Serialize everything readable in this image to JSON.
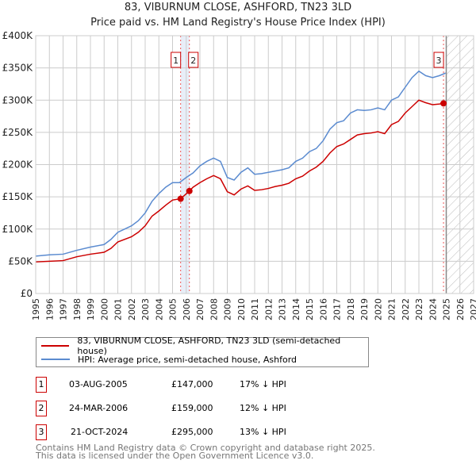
{
  "chart_data": {
    "type": "line",
    "title": "83, VIBURNUM CLOSE, ASHFORD, TN23 3LD",
    "subtitle": "Price paid vs. HM Land Registry's House Price Index (HPI)",
    "xlim": [
      1995,
      2027
    ],
    "ylim": [
      0,
      400000
    ],
    "yticks": [
      0,
      50000,
      100000,
      150000,
      200000,
      250000,
      300000,
      350000,
      400000
    ],
    "ytick_labels": [
      "£0",
      "£50K",
      "£100K",
      "£150K",
      "£200K",
      "£250K",
      "£300K",
      "£350K",
      "£400K"
    ],
    "xticks": [
      "1995",
      "1996",
      "1997",
      "1998",
      "1999",
      "2000",
      "2001",
      "2002",
      "2003",
      "2004",
      "2005",
      "2006",
      "2007",
      "2008",
      "2009",
      "2010",
      "2011",
      "2012",
      "2013",
      "2014",
      "2015",
      "2016",
      "2017",
      "2018",
      "2019",
      "2020",
      "2021",
      "2022",
      "2023",
      "2024",
      "2025",
      "2026",
      "2027"
    ],
    "grid": true,
    "forecast_start": 2025.0,
    "series": [
      {
        "name": "83, VIBURNUM CLOSE, ASHFORD, TN23 3LD (semi-detached house)",
        "color": "#cc0000",
        "x": [
          1995,
          1996,
          1997,
          1998,
          1999,
          2000,
          2000.5,
          2001,
          2002,
          2002.5,
          2003,
          2003.5,
          2004,
          2004.5,
          2005,
          2005.59,
          2006.23,
          2006.5,
          2007,
          2007.5,
          2008,
          2008.5,
          2009,
          2009.5,
          2010,
          2010.5,
          2011,
          2011.5,
          2012,
          2012.5,
          2013,
          2013.5,
          2014,
          2014.5,
          2015,
          2015.5,
          2016,
          2016.5,
          2017,
          2017.5,
          2018,
          2018.5,
          2019,
          2019.5,
          2020,
          2020.5,
          2021,
          2021.5,
          2022,
          2022.5,
          2023,
          2023.5,
          2024,
          2024.5,
          2024.8,
          2024.95
        ],
        "y": [
          49000,
          50000,
          51000,
          57000,
          61000,
          64000,
          70000,
          80000,
          88000,
          95000,
          105000,
          120000,
          128000,
          137000,
          145000,
          147000,
          159000,
          165000,
          172000,
          178000,
          183000,
          178000,
          158000,
          153000,
          162000,
          167000,
          160000,
          161000,
          163000,
          166000,
          168000,
          171000,
          178000,
          182000,
          190000,
          196000,
          205000,
          218000,
          228000,
          232000,
          239000,
          246000,
          248000,
          249000,
          251000,
          248000,
          262000,
          267000,
          280000,
          290000,
          300000,
          296000,
          293000,
          294000,
          295000,
          296000
        ]
      },
      {
        "name": "HPI: Average price, semi-detached house, Ashford",
        "color": "#5b8bd0",
        "x": [
          1995,
          1996,
          1997,
          1998,
          1999,
          2000,
          2000.5,
          2001,
          2002,
          2002.5,
          2003,
          2003.5,
          2004,
          2004.5,
          2005,
          2005.5,
          2006,
          2006.5,
          2007,
          2007.5,
          2008,
          2008.5,
          2009,
          2009.5,
          2010,
          2010.5,
          2011,
          2011.5,
          2012,
          2012.5,
          2013,
          2013.5,
          2014,
          2014.5,
          2015,
          2015.5,
          2016,
          2016.5,
          2017,
          2017.5,
          2018,
          2018.5,
          2019,
          2019.5,
          2020,
          2020.5,
          2021,
          2021.5,
          2022,
          2022.5,
          2023,
          2023.5,
          2024,
          2024.5,
          2024.95
        ],
        "y": [
          58000,
          60000,
          61000,
          67000,
          72000,
          76000,
          84000,
          95000,
          105000,
          113000,
          125000,
          143000,
          155000,
          165000,
          172000,
          172000,
          180000,
          187000,
          198000,
          205000,
          210000,
          205000,
          180000,
          176000,
          188000,
          195000,
          185000,
          186000,
          188000,
          190000,
          192000,
          195000,
          205000,
          210000,
          220000,
          225000,
          237000,
          255000,
          265000,
          268000,
          280000,
          285000,
          284000,
          285000,
          288000,
          285000,
          300000,
          305000,
          320000,
          335000,
          345000,
          338000,
          335000,
          338000,
          342000
        ]
      }
    ],
    "sales": [
      {
        "label": "1",
        "x": 2005.59,
        "price": 147000,
        "date": "03-AUG-2005",
        "price_text": "£147,000",
        "hpi_text": "17% ↓ HPI"
      },
      {
        "label": "2",
        "x": 2006.23,
        "price": 159000,
        "date": "24-MAR-2006",
        "price_text": "£159,000",
        "hpi_text": "12% ↓ HPI"
      },
      {
        "label": "3",
        "x": 2024.8,
        "price": 295000,
        "date": "21-OCT-2024",
        "price_text": "£295,000",
        "hpi_text": "13% ↓ HPI"
      }
    ],
    "legend": {
      "placement": "bottom",
      "entries": [
        "83, VIBURNUM CLOSE, ASHFORD, TN23 3LD (semi-detached house)",
        "HPI: Average price, semi-detached house, Ashford"
      ]
    }
  },
  "footer": {
    "line1": "Contains HM Land Registry data © Crown copyright and database right 2025.",
    "line2": "This data is licensed under the Open Government Licence v3.0."
  }
}
